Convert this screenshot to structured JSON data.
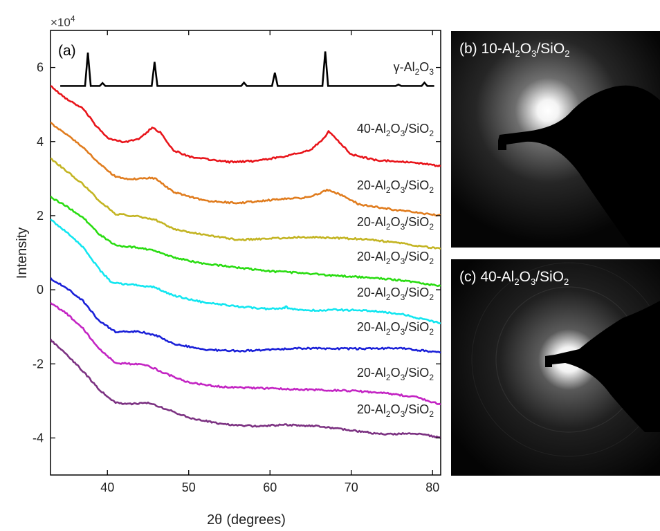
{
  "chart_data": {
    "type": "line",
    "panel_label": "(a)",
    "exponent_label": "×10",
    "exponent_power": "4",
    "xlabel_symbol": "2θ",
    "xlabel_unit": "(degrees)",
    "ylabel": "Intensity",
    "xlim": [
      33,
      81
    ],
    "ylim": [
      -50000,
      70000
    ],
    "x_ticks": [
      "40",
      "50",
      "60",
      "70",
      "80"
    ],
    "y_ticks": [
      "6",
      "4",
      "2",
      "0",
      "-2",
      "-4"
    ],
    "grid": false,
    "reference": {
      "name_prefix": "γ-Al",
      "name_sub1": "2",
      "name_mid": "O",
      "name_sub2": "3",
      "color": "#000000",
      "baseline": 55000,
      "peaks": [
        {
          "x": 37.6,
          "y": 64000
        },
        {
          "x": 39.4,
          "y": 55800
        },
        {
          "x": 45.8,
          "y": 61500
        },
        {
          "x": 56.8,
          "y": 55900
        },
        {
          "x": 60.6,
          "y": 58600
        },
        {
          "x": 66.8,
          "y": 64300
        },
        {
          "x": 75.8,
          "y": 55400
        },
        {
          "x": 79.0,
          "y": 55900
        }
      ]
    },
    "series": [
      {
        "color": "#e8141a",
        "label_a": "40-Al",
        "label_b": "2",
        "label_c": "O",
        "label_d": "3",
        "label_e": "/SiO",
        "label_f": "2",
        "points": [
          [
            33,
            55000
          ],
          [
            35,
            51500
          ],
          [
            37,
            49000
          ],
          [
            38.5,
            44500
          ],
          [
            40,
            41000
          ],
          [
            42,
            39800
          ],
          [
            44,
            40800
          ],
          [
            45.5,
            43800
          ],
          [
            46.5,
            42500
          ],
          [
            48,
            37800
          ],
          [
            50,
            36000
          ],
          [
            52,
            35300
          ],
          [
            55,
            34500
          ],
          [
            58,
            34700
          ],
          [
            62,
            36000
          ],
          [
            65,
            37800
          ],
          [
            66.5,
            40500
          ],
          [
            67.2,
            42800
          ],
          [
            68.2,
            40500
          ],
          [
            70,
            36500
          ],
          [
            73,
            35000
          ],
          [
            76,
            34600
          ],
          [
            79,
            34000
          ],
          [
            81,
            33300
          ]
        ]
      },
      {
        "color": "#e07c1e",
        "label_a": "20-Al",
        "label_b": "2",
        "label_c": "O",
        "label_d": "3",
        "label_e": "/SiO",
        "label_f": "2",
        "points": [
          [
            33,
            45000
          ],
          [
            35,
            42000
          ],
          [
            37,
            38500
          ],
          [
            39,
            34000
          ],
          [
            41,
            30500
          ],
          [
            43,
            29800
          ],
          [
            45,
            30200
          ],
          [
            46,
            30000
          ],
          [
            48,
            26500
          ],
          [
            52,
            24000
          ],
          [
            56,
            23400
          ],
          [
            60,
            24200
          ],
          [
            64,
            24800
          ],
          [
            66,
            25800
          ],
          [
            67,
            27000
          ],
          [
            68.5,
            25800
          ],
          [
            71,
            23000
          ],
          [
            75,
            21700
          ],
          [
            81,
            20000
          ]
        ]
      },
      {
        "color": "#c3b422",
        "label_a": "20-Al",
        "label_b": "2",
        "label_c": "O",
        "label_d": "3",
        "label_e": "/SiO",
        "label_f": "2",
        "points": [
          [
            33,
            35500
          ],
          [
            35,
            32000
          ],
          [
            37,
            28500
          ],
          [
            39,
            24000
          ],
          [
            41,
            20500
          ],
          [
            44,
            19700
          ],
          [
            46,
            18800
          ],
          [
            48,
            16500
          ],
          [
            52,
            14800
          ],
          [
            56,
            13500
          ],
          [
            60,
            13800
          ],
          [
            64,
            14200
          ],
          [
            68,
            14000
          ],
          [
            72,
            13600
          ],
          [
            76,
            12600
          ],
          [
            81,
            11000
          ]
        ]
      },
      {
        "color": "#2adc12",
        "label_a": "20-Al",
        "label_b": "2",
        "label_c": "O",
        "label_d": "3",
        "label_e": "/SiO",
        "label_f": "2",
        "points": [
          [
            33,
            25000
          ],
          [
            35,
            22500
          ],
          [
            37,
            19500
          ],
          [
            39,
            15000
          ],
          [
            41,
            12000
          ],
          [
            44,
            11300
          ],
          [
            46,
            10500
          ],
          [
            48,
            8800
          ],
          [
            52,
            7000
          ],
          [
            56,
            6000
          ],
          [
            60,
            5000
          ],
          [
            64,
            4500
          ],
          [
            68,
            3800
          ],
          [
            72,
            3300
          ],
          [
            76,
            2600
          ],
          [
            81,
            1000
          ]
        ]
      },
      {
        "color": "#12e6f0",
        "label_a": "20-Al",
        "label_b": "2",
        "label_c": "O",
        "label_d": "3",
        "label_e": "/SiO",
        "label_f": "2",
        "points": [
          [
            33,
            19000
          ],
          [
            35,
            15500
          ],
          [
            37,
            11500
          ],
          [
            39,
            5500
          ],
          [
            40.5,
            2000
          ],
          [
            42,
            1500
          ],
          [
            44,
            1200
          ],
          [
            46,
            600
          ],
          [
            48,
            -1500
          ],
          [
            52,
            -3500
          ],
          [
            56,
            -4500
          ],
          [
            60,
            -5200
          ],
          [
            61.8,
            -5000
          ],
          [
            62,
            -4200
          ],
          [
            62.2,
            -5100
          ],
          [
            64,
            -5600
          ],
          [
            68,
            -5400
          ],
          [
            72,
            -5600
          ],
          [
            76,
            -6500
          ],
          [
            81,
            -9000
          ]
        ]
      },
      {
        "color": "#1a20d8",
        "label_a": "20-Al",
        "label_b": "2",
        "label_c": "O",
        "label_d": "3",
        "label_e": "/SiO",
        "label_f": "2",
        "points": [
          [
            33,
            3000
          ],
          [
            35,
            500
          ],
          [
            37,
            -3000
          ],
          [
            39,
            -8500
          ],
          [
            41,
            -11300
          ],
          [
            44,
            -11300
          ],
          [
            46,
            -12300
          ],
          [
            48,
            -14500
          ],
          [
            52,
            -16200
          ],
          [
            56,
            -16500
          ],
          [
            60,
            -16200
          ],
          [
            64,
            -15800
          ],
          [
            68,
            -15900
          ],
          [
            72,
            -15900
          ],
          [
            76,
            -15700
          ],
          [
            81,
            -17000
          ]
        ]
      },
      {
        "color": "#c324c3",
        "label_a": "20-Al",
        "label_b": "2",
        "label_c": "O",
        "label_d": "3",
        "label_e": "/SiO",
        "label_f": "2",
        "points": [
          [
            33,
            -3500
          ],
          [
            35,
            -6500
          ],
          [
            37,
            -10500
          ],
          [
            39,
            -16000
          ],
          [
            41,
            -19800
          ],
          [
            43,
            -20000
          ],
          [
            45,
            -20500
          ],
          [
            47,
            -22500
          ],
          [
            50,
            -25000
          ],
          [
            54,
            -26200
          ],
          [
            58,
            -26500
          ],
          [
            62,
            -26800
          ],
          [
            66,
            -27000
          ],
          [
            70,
            -27300
          ],
          [
            74,
            -27800
          ],
          [
            78,
            -29000
          ],
          [
            81,
            -31000
          ]
        ]
      },
      {
        "color": "#7c3282",
        "label_a": "20-Al",
        "label_b": "2",
        "label_c": "O",
        "label_d": "3",
        "label_e": "/SiO",
        "label_f": "2",
        "points": [
          [
            33,
            -13500
          ],
          [
            35,
            -17500
          ],
          [
            37,
            -22000
          ],
          [
            39,
            -27000
          ],
          [
            41,
            -30500
          ],
          [
            43,
            -30800
          ],
          [
            45,
            -30500
          ],
          [
            47,
            -32000
          ],
          [
            50,
            -34500
          ],
          [
            54,
            -36300
          ],
          [
            58,
            -36800
          ],
          [
            62,
            -36500
          ],
          [
            66,
            -36800
          ],
          [
            70,
            -38000
          ],
          [
            74,
            -39000
          ],
          [
            77,
            -38800
          ],
          [
            79,
            -39000
          ],
          [
            81,
            -40000
          ]
        ]
      }
    ]
  },
  "panels": {
    "b": {
      "prefix": "(b) 10-Al",
      "sub1": "2",
      "mid": "O",
      "sub2": "3",
      "suffix": "/SiO",
      "sub3": "2"
    },
    "c": {
      "prefix": "(c) 40-Al",
      "sub1": "2",
      "mid": "O",
      "sub2": "3",
      "suffix": "/SiO",
      "sub3": "2"
    }
  }
}
